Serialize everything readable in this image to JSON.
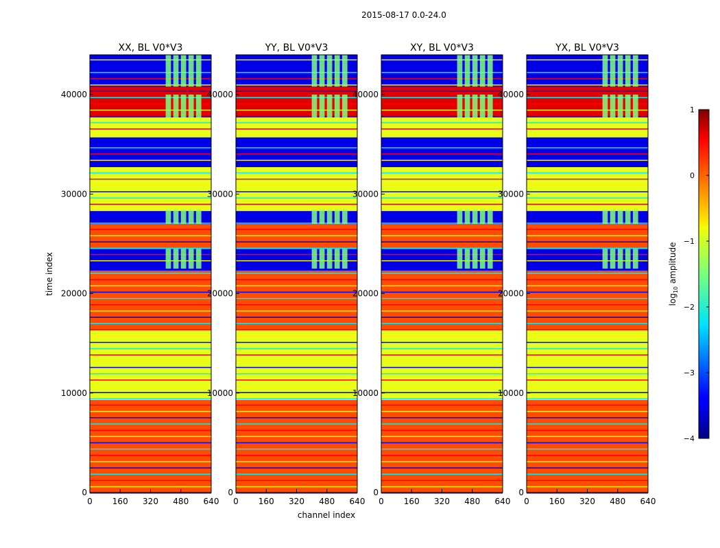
{
  "figure": {
    "title": "2015-08-17 0.0-24.0"
  },
  "chart_data": {
    "type": "heatmap",
    "xlabel": "channel index",
    "ylabel": "time index",
    "xlim": [
      0,
      640
    ],
    "ylim": [
      0,
      44000
    ],
    "xticks": [
      "0",
      "160",
      "320",
      "480",
      "640"
    ],
    "yticks": [
      "0",
      "10000",
      "20000",
      "30000",
      "40000"
    ],
    "colorbar": {
      "label_main": "log",
      "label_sub": "10",
      "label_tail": " amplitude",
      "range": [
        -4,
        1
      ],
      "ticks": [
        "1",
        "0",
        "−1",
        "−2",
        "−3",
        "−4"
      ],
      "colormap": "jet"
    },
    "panels": [
      {
        "title": "XX, BL V0*V3"
      },
      {
        "title": "YY, BL V0*V3"
      },
      {
        "title": "XY, BL V0*V3"
      },
      {
        "title": "YX, BL V0*V3"
      }
    ],
    "time_bands": [
      {
        "from": 0,
        "to": 3200,
        "value": 0.0
      },
      {
        "from": 3200,
        "to": 9300,
        "value": 0.0
      },
      {
        "from": 9300,
        "to": 16300,
        "value": -1.0
      },
      {
        "from": 16300,
        "to": 20000,
        "value": 0.0
      },
      {
        "from": 20000,
        "to": 22300,
        "value": 0.0
      },
      {
        "from": 22300,
        "to": 24500,
        "value": -3.5
      },
      {
        "from": 24500,
        "to": 27000,
        "value": 0.0
      },
      {
        "from": 27000,
        "to": 28300,
        "value": -3.5
      },
      {
        "from": 28300,
        "to": 32800,
        "value": -1.0
      },
      {
        "from": 32800,
        "to": 35700,
        "value": -3.5
      },
      {
        "from": 35700,
        "to": 37700,
        "value": -1.0
      },
      {
        "from": 37700,
        "to": 40800,
        "value": 0.5
      },
      {
        "from": 40800,
        "to": 44000,
        "value": -3.5
      }
    ]
  }
}
